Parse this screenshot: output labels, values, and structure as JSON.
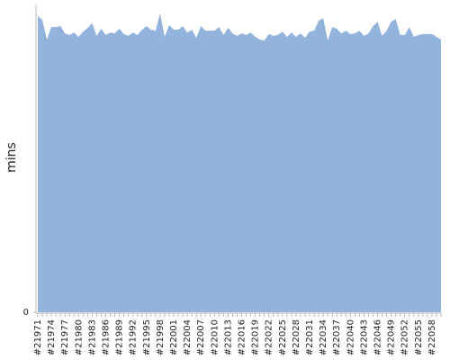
{
  "chart_data": {
    "type": "area",
    "y_label": "mins",
    "color": "#91b3dc",
    "categories": [
      "#21971",
      null,
      null,
      "#21974",
      null,
      null,
      "#21977",
      null,
      null,
      "#21980",
      null,
      null,
      "#21983",
      null,
      null,
      "#21986",
      null,
      null,
      "#21989",
      null,
      null,
      "#21992",
      null,
      null,
      "#21995",
      null,
      null,
      "#21998",
      null,
      null,
      "#22001",
      null,
      null,
      "#22004",
      null,
      null,
      "#22007",
      null,
      null,
      "#22010",
      null,
      null,
      "#22013",
      null,
      null,
      "#22016",
      null,
      null,
      "#22019",
      null,
      null,
      "#22022",
      null,
      null,
      "#22025",
      null,
      null,
      "#22028",
      null,
      null,
      "#22031",
      null,
      null,
      "#22034",
      null,
      null,
      "#22037",
      null,
      null,
      "#22040",
      null,
      null,
      "#22043",
      null,
      null,
      "#22046",
      null,
      null,
      "#22049",
      null,
      null,
      "#22052",
      null,
      null,
      "#22055",
      null,
      null,
      "#22058",
      null,
      null
    ],
    "values": [
      96.2,
      95.0,
      88.6,
      92.7,
      92.7,
      93.0,
      90.6,
      90.1,
      90.9,
      89.5,
      91.2,
      92.4,
      93.9,
      89.8,
      92.1,
      90.1,
      90.9,
      90.6,
      92.1,
      90.4,
      89.8,
      90.9,
      90.1,
      91.8,
      93.0,
      91.8,
      91.5,
      97.1,
      89.5,
      93.3,
      91.8,
      91.8,
      93.0,
      90.9,
      91.8,
      89.2,
      93.0,
      91.5,
      91.5,
      91.5,
      92.7,
      90.1,
      92.4,
      90.6,
      89.8,
      90.6,
      90.1,
      90.9,
      89.5,
      88.6,
      88.3,
      90.4,
      89.8,
      90.1,
      91.2,
      89.5,
      90.9,
      89.5,
      90.6,
      89.2,
      91.2,
      91.5,
      94.7,
      95.6,
      88.3,
      92.7,
      92.1,
      90.6,
      91.5,
      90.4,
      90.6,
      91.5,
      89.8,
      90.6,
      93.0,
      94.4,
      89.8,
      91.5,
      94.4,
      95.3,
      90.1,
      90.1,
      92.7,
      89.5,
      90.1,
      90.4,
      90.4,
      90.4,
      89.5,
      88.6
    ],
    "ylim": [
      0,
      100
    ],
    "yticks": [
      0
    ]
  }
}
